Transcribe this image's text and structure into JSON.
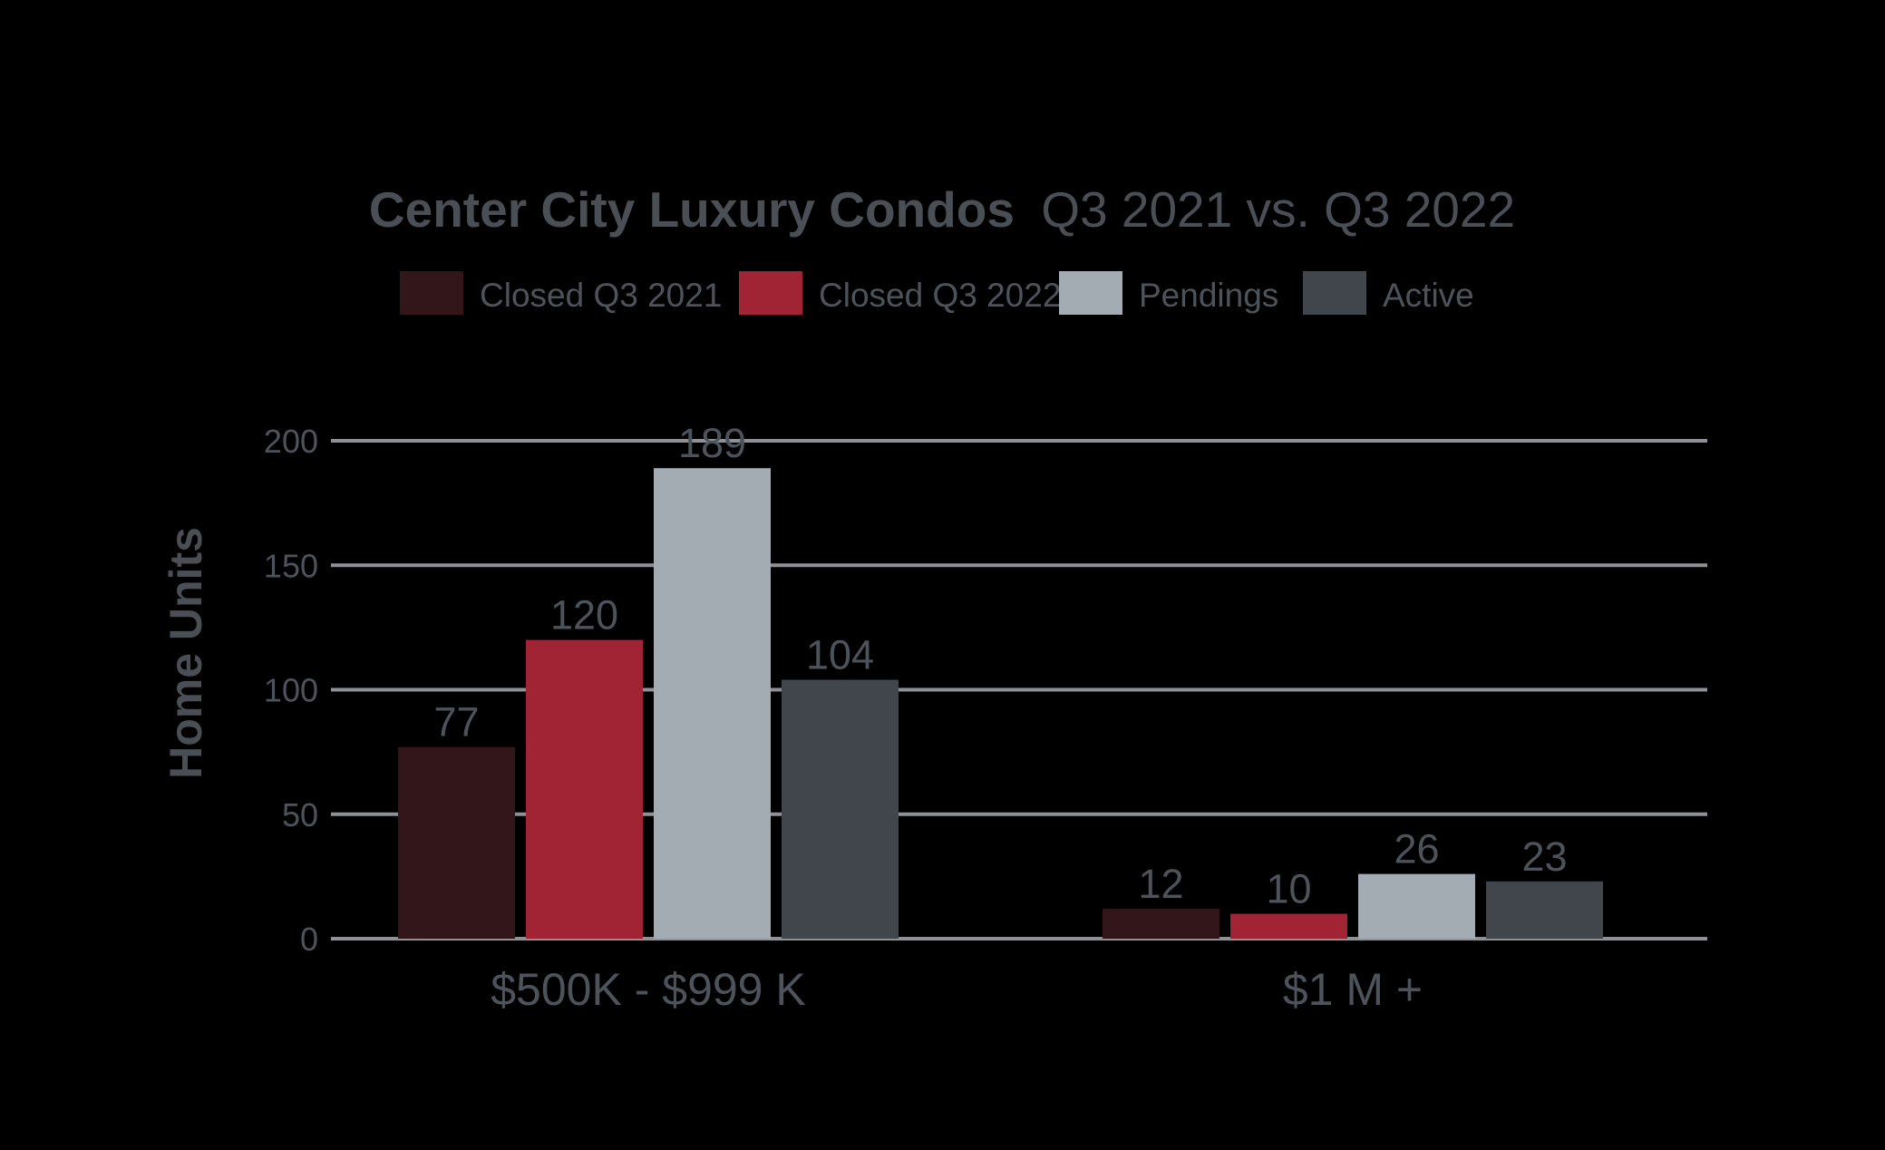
{
  "chart_data": {
    "type": "bar",
    "title": "Center City Luxury Condos Q3 2021 vs. Q3 2022",
    "title_bold_part": "Center City Luxury Condos",
    "title_light_part": "Q3 2021 vs. Q3 2022",
    "xlabel": "",
    "ylabel": "Home Units",
    "ylim": [
      0,
      200
    ],
    "yticks": [
      0,
      50,
      100,
      150,
      200
    ],
    "grid": true,
    "legend_position": "top",
    "categories": [
      "$500K - $999 K",
      "$1 M +"
    ],
    "series": [
      {
        "name": "Closed Q3 2021",
        "color": "#33161a",
        "values": [
          77,
          12
        ]
      },
      {
        "name": "Closed Q3 2022",
        "color": "#a02433",
        "values": [
          120,
          10
        ]
      },
      {
        "name": "Pendings",
        "color": "#a3abb3",
        "values": [
          189,
          26
        ]
      },
      {
        "name": "Active",
        "color": "#41464d",
        "values": [
          104,
          23
        ]
      }
    ]
  }
}
